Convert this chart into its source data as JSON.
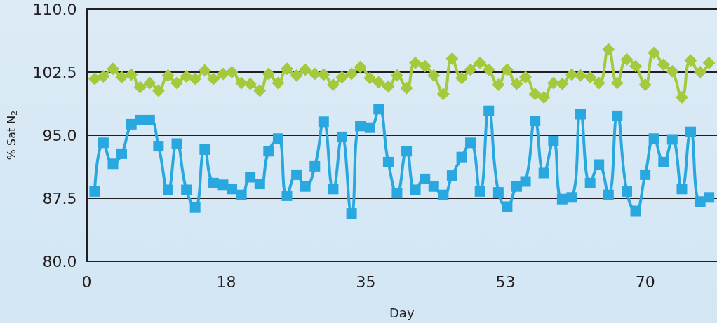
{
  "chart_data": {
    "type": "line",
    "xlabel": "Day",
    "ylabel": "% Sat N$_{2}$",
    "x": [
      1.0,
      2.1,
      3.3,
      4.4,
      5.6,
      6.7,
      7.9,
      9.0,
      10.2,
      11.3,
      12.5,
      13.6,
      14.8,
      15.9,
      17.1,
      18.2,
      19.4,
      20.5,
      21.7,
      22.8,
      24.0,
      25.1,
      26.3,
      27.4,
      28.6,
      29.7,
      30.9,
      32.0,
      33.2,
      34.3,
      35.5,
      36.6,
      37.8,
      38.9,
      40.1,
      41.2,
      42.4,
      43.5,
      44.7,
      45.8,
      47.0,
      48.1,
      49.3,
      50.4,
      51.6,
      52.7,
      53.9,
      55.0,
      56.2,
      57.3,
      58.5,
      59.6,
      60.8,
      61.9,
      63.1,
      64.2,
      65.4,
      66.5,
      67.7,
      68.8,
      70.0,
      71.1,
      72.3,
      73.4,
      74.6,
      75.7,
      76.9,
      78.0
    ],
    "series": [
      {
        "color": "#a5c93c",
        "marker": "diamond",
        "values": [
          101.7,
          102.0,
          102.9,
          101.9,
          102.2,
          100.7,
          101.2,
          100.3,
          102.1,
          101.2,
          102.0,
          101.7,
          102.7,
          101.7,
          102.3,
          102.5,
          101.2,
          101.1,
          100.3,
          102.3,
          101.2,
          102.9,
          102.1,
          102.8,
          102.3,
          102.2,
          101.0,
          101.9,
          102.3,
          103.1,
          101.8,
          101.3,
          100.8,
          102.1,
          100.6,
          103.6,
          103.2,
          102.1,
          99.9,
          104.1,
          101.8,
          102.8,
          103.6,
          102.8,
          101.0,
          102.8,
          101.1,
          101.9,
          99.9,
          99.5,
          101.2,
          101.1,
          102.2,
          102.1,
          101.9,
          101.2,
          105.2,
          101.2,
          104.0,
          103.2,
          101.0,
          104.8,
          103.4,
          102.6,
          99.5,
          103.9,
          102.5,
          103.6
        ]
      },
      {
        "color": "#29a7df",
        "marker": "square",
        "values": [
          88.3,
          94.1,
          91.6,
          92.8,
          96.3,
          96.8,
          96.8,
          93.7,
          88.5,
          94.0,
          88.5,
          86.4,
          93.3,
          89.3,
          89.1,
          88.6,
          87.9,
          90.0,
          89.2,
          93.1,
          94.6,
          87.8,
          90.3,
          88.9,
          91.3,
          96.6,
          88.6,
          94.8,
          85.7,
          96.1,
          95.9,
          98.1,
          91.8,
          88.1,
          93.1,
          88.5,
          89.8,
          88.9,
          87.9,
          90.2,
          92.4,
          94.1,
          88.3,
          97.9,
          88.2,
          86.5,
          88.9,
          89.5,
          96.7,
          90.5,
          94.3,
          87.4,
          87.6,
          97.5,
          89.3,
          91.5,
          87.9,
          97.3,
          88.3,
          86.0,
          90.3,
          94.6,
          91.8,
          94.5,
          88.6,
          95.4,
          87.1,
          87.6
        ]
      }
    ],
    "xlim": [
      0,
      79
    ],
    "xticks": [
      0,
      {
        "value": 17.5,
        "label": "18"
      },
      35,
      {
        "value": 52.5,
        "label": "53"
      },
      70
    ],
    "ylim": [
      80,
      110
    ],
    "yticks": [
      {
        "value": 80,
        "label": "80.0"
      },
      {
        "value": 87.5,
        "label": "87.5"
      },
      {
        "value": 95,
        "label": "95.0"
      },
      {
        "value": 102.5,
        "label": "102.5"
      },
      {
        "value": 110,
        "label": "110.0"
      }
    ],
    "grid": "y",
    "line_style": "solid"
  }
}
